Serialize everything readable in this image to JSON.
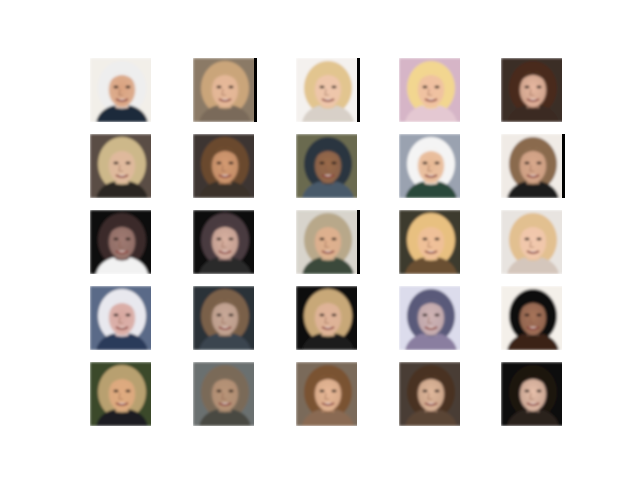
{
  "figure": {
    "rows": 5,
    "columns": 5,
    "tiles": [
      {
        "bg": "#f2efe9",
        "skin": "#d9a27f",
        "hair": "#eeeeee",
        "shirt": "#1e2a3a",
        "edge": "#ffffff"
      },
      {
        "bg": "#8b7a66",
        "skin": "#e6b89a",
        "hair": "#caa57a",
        "shirt": "#7a6a5a",
        "edge": "#000000"
      },
      {
        "bg": "#f4f1ee",
        "skin": "#efc6ad",
        "hair": "#e2c58f",
        "shirt": "#d8d0c8",
        "edge": "#000000"
      },
      {
        "bg": "#d6b5c7",
        "skin": "#f0bfa2",
        "hair": "#f2d690",
        "shirt": "#e4c8d2",
        "edge": "#ffffff"
      },
      {
        "bg": "#3a2e28",
        "skin": "#e7b8a1",
        "hair": "#4a2a1a",
        "shirt": "#3a2a22",
        "edge": "#ffffff"
      },
      {
        "bg": "#5a4e44",
        "skin": "#e0b89e",
        "hair": "#cdb88a",
        "shirt": "#2a2622",
        "edge": "#ffffff"
      },
      {
        "bg": "#3c3632",
        "skin": "#d39a72",
        "hair": "#6a4a2e",
        "shirt": "#3a302a",
        "edge": "#ffffff"
      },
      {
        "bg": "#6a6a50",
        "skin": "#9a6a4a",
        "hair": "#2a3640",
        "shirt": "#4a5a6a",
        "edge": "#ffffff"
      },
      {
        "bg": "#9aa2b0",
        "skin": "#e8b894",
        "hair": "#f4f4f4",
        "shirt": "#2a4a3a",
        "edge": "#ffffff"
      },
      {
        "bg": "#f0ebe6",
        "skin": "#d8a88c",
        "hair": "#8a6a4e",
        "shirt": "#1a1a1a",
        "edge": "#000000"
      },
      {
        "bg": "#0a0a0a",
        "skin": "#a07a72",
        "hair": "#3a2a2a",
        "shirt": "#f2f2f2",
        "edge": "#ffffff"
      },
      {
        "bg": "#0b0b0b",
        "skin": "#d8b0a0",
        "hair": "#4a3a40",
        "shirt": "#2a2a2a",
        "edge": "#ffffff"
      },
      {
        "bg": "#d8d4cc",
        "skin": "#e0b08e",
        "hair": "#b8a88a",
        "shirt": "#3a4a3a",
        "edge": "#000000"
      },
      {
        "bg": "#3e3a2e",
        "skin": "#f0c09a",
        "hair": "#e8c080",
        "shirt": "#6a5030",
        "edge": "#ffffff"
      },
      {
        "bg": "#e8e4e0",
        "skin": "#f2c8ae",
        "hair": "#e2c090",
        "shirt": "#d4c6bc",
        "edge": "#ffffff"
      },
      {
        "bg": "#5a6a88",
        "skin": "#d8a8a0",
        "hair": "#e8e8ee",
        "shirt": "#2a3a5a",
        "edge": "#ffffff"
      },
      {
        "bg": "#2a3038",
        "skin": "#c8a898",
        "hair": "#7a6048",
        "shirt": "#3a4450",
        "edge": "#ffffff"
      },
      {
        "bg": "#0c0c0c",
        "skin": "#e0b49a",
        "hair": "#c8a878",
        "shirt": "#1c1c1c",
        "edge": "#ffffff"
      },
      {
        "bg": "#dcdcec",
        "skin": "#d0b4b4",
        "hair": "#5a5a7a",
        "shirt": "#8a7ea0",
        "edge": "#ffffff"
      },
      {
        "bg": "#f4f0ea",
        "skin": "#a8745a",
        "hair": "#0c0c0c",
        "shirt": "#3a2418",
        "edge": "#ffffff"
      },
      {
        "bg": "#3a4a2a",
        "skin": "#e0aa80",
        "hair": "#b8a070",
        "shirt": "#1a1a22",
        "edge": "#ffffff"
      },
      {
        "bg": "#6a7070",
        "skin": "#b89478",
        "hair": "#7a6a58",
        "shirt": "#4a4a42",
        "edge": "#ffffff"
      },
      {
        "bg": "#7a6a5a",
        "skin": "#e8b898",
        "hair": "#7a5232",
        "shirt": "#8a6a52",
        "edge": "#ffffff"
      },
      {
        "bg": "#4a3e36",
        "skin": "#e0b89c",
        "hair": "#4a3020",
        "shirt": "#5a4434",
        "edge": "#ffffff"
      },
      {
        "bg": "#0a0a0a",
        "skin": "#e8c0aa",
        "hair": "#1a1210",
        "shirt": "#2a201c",
        "edge": "#ffffff"
      }
    ]
  }
}
